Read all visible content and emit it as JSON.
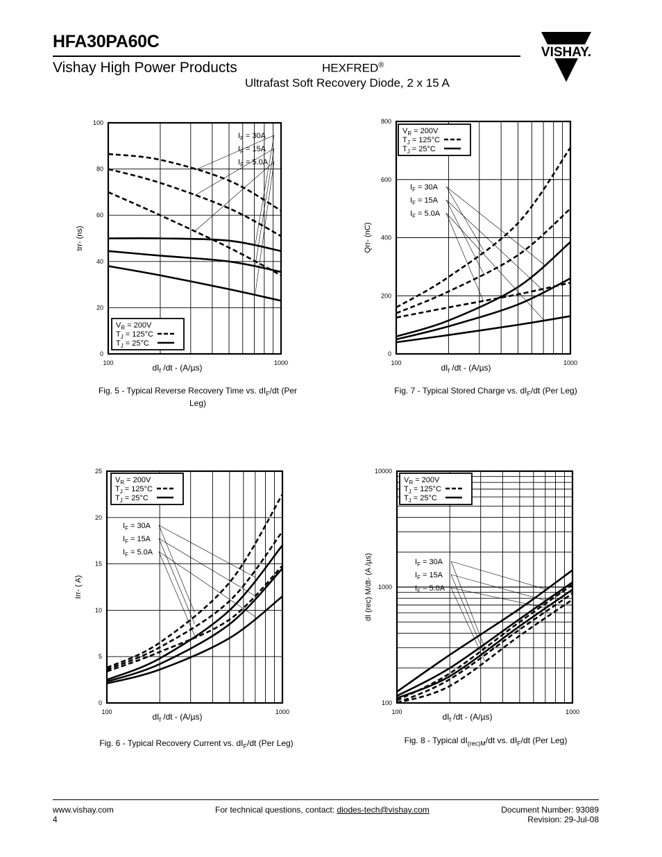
{
  "header": {
    "part_number": "HFA30PA60C",
    "division": "Vishay High Power Products",
    "product_family": "HEXFRED",
    "registered_mark": "®",
    "subtitle": "Ultrafast Soft Recovery Diode, 2 x 15 A",
    "logo_text": "VISHAY."
  },
  "footer": {
    "website": "www.vishay.com",
    "page_number": "4",
    "contact_prefix": "For technical questions, contact: ",
    "contact_email": "diodes-tech@vishay.com",
    "document_number": "Document Number: 93089",
    "revision": "Revision: 29-Jul-08"
  },
  "legend": {
    "vr": "V_R = 200V",
    "tj_hot": "T_J = 125°C",
    "tj_cold": "T_J = 25°C",
    "if_labels": [
      "I_F = 30A",
      "I_F = 15A",
      "I_F = 5.0A"
    ]
  },
  "chart_data": [
    {
      "id": "fig5",
      "type": "line",
      "caption": "Fig. 5 - Typical Reverse Recovery Time vs. dI_F/dt (Per Leg)",
      "xlabel": "dI_f /dt - (A/µs)",
      "ylabel": "trr- (ns)",
      "xscale": "log",
      "xlim": [
        100,
        1000
      ],
      "xticks": [
        "100",
        "1000"
      ],
      "yscale": "linear",
      "ylim": [
        0,
        100
      ],
      "yticks": [
        "0",
        "20",
        "40",
        "60",
        "80",
        "100"
      ],
      "legend_position": "bottom-left",
      "series": [
        {
          "if": "30A",
          "tj": "125",
          "x": [
            100,
            200,
            500,
            1000
          ],
          "y": [
            86.5,
            84,
            75,
            62
          ]
        },
        {
          "if": "15A",
          "tj": "125",
          "x": [
            100,
            200,
            500,
            1000
          ],
          "y": [
            80,
            74,
            63,
            51
          ]
        },
        {
          "if": "5.0A",
          "tj": "125",
          "x": [
            100,
            200,
            500,
            1000
          ],
          "y": [
            70,
            60,
            46,
            34
          ]
        },
        {
          "if": "30A",
          "tj": "25",
          "x": [
            100,
            200,
            500,
            1000
          ],
          "y": [
            50,
            50,
            49,
            44.5
          ]
        },
        {
          "if": "15A",
          "tj": "25",
          "x": [
            100,
            200,
            500,
            1000
          ],
          "y": [
            44.5,
            42.5,
            40,
            35.5
          ]
        },
        {
          "if": "5.0A",
          "tj": "25",
          "x": [
            100,
            200,
            500,
            1000
          ],
          "y": [
            38,
            34,
            28,
            23
          ]
        }
      ]
    },
    {
      "id": "fig7",
      "type": "line",
      "caption": "Fig. 7 - Typical Stored Charge vs. dI_F/dt (Per Leg)",
      "xlabel": "dI_f /dt - (A/µs)",
      "ylabel": "Qrr- (nC)",
      "xscale": "log",
      "xlim": [
        100,
        1000
      ],
      "xticks": [
        "100",
        "1000"
      ],
      "yscale": "linear",
      "ylim": [
        0,
        800
      ],
      "yticks": [
        "0",
        "200",
        "400",
        "600",
        "800"
      ],
      "legend_position": "top-left",
      "series": [
        {
          "if": "30A",
          "tj": "125",
          "x": [
            100,
            200,
            500,
            1000
          ],
          "y": [
            160,
            265,
            450,
            710
          ]
        },
        {
          "if": "15A",
          "tj": "125",
          "x": [
            100,
            200,
            500,
            1000
          ],
          "y": [
            140,
            215,
            340,
            500
          ]
        },
        {
          "if": "5.0A",
          "tj": "125",
          "x": [
            100,
            200,
            500,
            1000
          ],
          "y": [
            125,
            160,
            205,
            245
          ]
        },
        {
          "if": "30A",
          "tj": "25",
          "x": [
            100,
            200,
            500,
            1000
          ],
          "y": [
            60,
            115,
            230,
            385
          ]
        },
        {
          "if": "15A",
          "tj": "25",
          "x": [
            100,
            200,
            500,
            1000
          ],
          "y": [
            50,
            95,
            170,
            260
          ]
        },
        {
          "if": "5.0A",
          "tj": "25",
          "x": [
            100,
            200,
            500,
            1000
          ],
          "y": [
            40,
            65,
            100,
            130
          ]
        }
      ]
    },
    {
      "id": "fig6",
      "type": "line",
      "caption": "Fig. 6 - Typical Recovery Current vs. dI_F/dt (Per Leg)",
      "xlabel": "dI_f /dt - (A/µs)",
      "ylabel": "Irr- ( A)",
      "xscale": "log",
      "xlim": [
        100,
        1000
      ],
      "xticks": [
        "100",
        "1000"
      ],
      "yscale": "linear",
      "ylim": [
        0,
        25
      ],
      "yticks": [
        "0",
        "5",
        "10",
        "15",
        "20",
        "25"
      ],
      "legend_position": "top-left",
      "series": [
        {
          "if": "30A",
          "tj": "125",
          "x": [
            100,
            200,
            500,
            1000
          ],
          "y": [
            3.8,
            6.5,
            13,
            22.5
          ]
        },
        {
          "if": "15A",
          "tj": "125",
          "x": [
            100,
            200,
            500,
            1000
          ],
          "y": [
            3.6,
            6.0,
            11,
            18.5
          ]
        },
        {
          "if": "5.0A",
          "tj": "125",
          "x": [
            100,
            200,
            500,
            1000
          ],
          "y": [
            3.4,
            5.5,
            9,
            14.8
          ]
        },
        {
          "if": "30A",
          "tj": "25",
          "x": [
            100,
            200,
            500,
            1000
          ],
          "y": [
            2.5,
            4.8,
            10,
            17
          ]
        },
        {
          "if": "15A",
          "tj": "25",
          "x": [
            100,
            200,
            500,
            1000
          ],
          "y": [
            2.3,
            4.2,
            8.5,
            14.5
          ]
        },
        {
          "if": "5.0A",
          "tj": "25",
          "x": [
            100,
            200,
            500,
            1000
          ],
          "y": [
            2.1,
            3.6,
            7,
            11.5
          ]
        }
      ]
    },
    {
      "id": "fig8",
      "type": "line",
      "caption": "Fig. 8 - Typical dI_(rec)M/dt vs. dI_F/dt (Per Leg)",
      "xlabel": "dI_f /dt - (A/µs)",
      "ylabel": "dI (rec) M/dt- (A /µs)",
      "xscale": "log",
      "xlim": [
        100,
        1000
      ],
      "xticks": [
        "100",
        "1000"
      ],
      "yscale": "log",
      "ylim": [
        100,
        10000
      ],
      "yticks": [
        "100",
        "1000",
        "10000"
      ],
      "legend_position": "top-left",
      "series": [
        {
          "if": "30A",
          "tj": "125",
          "x": [
            100,
            200,
            500,
            1000
          ],
          "y": [
            105,
            180,
            500,
            1050
          ]
        },
        {
          "if": "15A",
          "tj": "125",
          "x": [
            100,
            200,
            500,
            1000
          ],
          "y": [
            100,
            160,
            430,
            880
          ]
        },
        {
          "if": "5.0A",
          "tj": "125",
          "x": [
            100,
            200,
            500,
            1000
          ],
          "y": [
            100,
            140,
            380,
            780
          ]
        },
        {
          "if": "30A",
          "tj": "25",
          "x": [
            100,
            200,
            500,
            1000
          ],
          "y": [
            125,
            260,
            650,
            1400
          ]
        },
        {
          "if": "15A",
          "tj": "25",
          "x": [
            100,
            200,
            500,
            1000
          ],
          "y": [
            115,
            200,
            530,
            1100
          ]
        },
        {
          "if": "5.0A",
          "tj": "25",
          "x": [
            100,
            200,
            500,
            1000
          ],
          "y": [
            110,
            170,
            460,
            950
          ]
        }
      ]
    }
  ]
}
